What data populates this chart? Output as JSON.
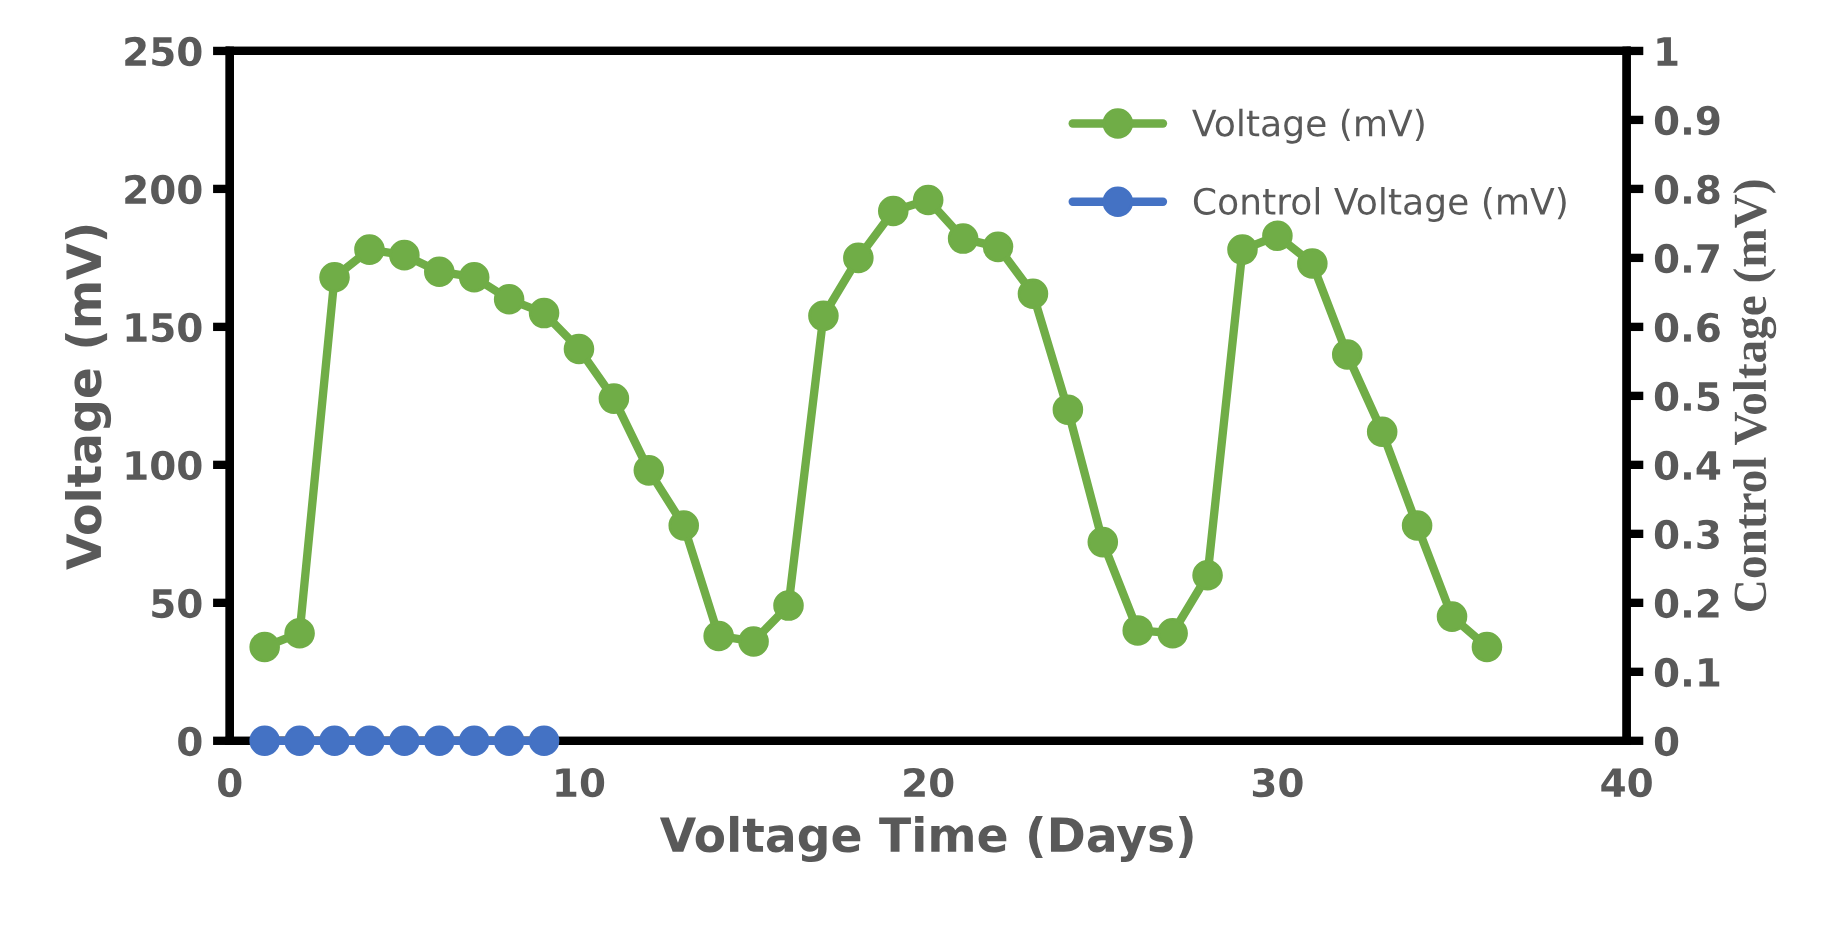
{
  "chart_data": {
    "type": "line",
    "xlabel": "Voltage Time (Days)",
    "ylabel": "Voltage (mV)",
    "y2label": "Control Voltage (mV)",
    "xlim": [
      0,
      40
    ],
    "xticks": [
      0,
      10,
      20,
      30,
      40
    ],
    "ylim": [
      0,
      250
    ],
    "yticks": [
      0,
      50,
      100,
      150,
      200,
      250
    ],
    "y2lim": [
      0,
      1
    ],
    "y2ticks": [
      0,
      0.1,
      0.2,
      0.3,
      0.4,
      0.5,
      0.6,
      0.7,
      0.8,
      0.9,
      1
    ],
    "grid": false,
    "legend": "top right",
    "marker": "circle",
    "line_style": "solid",
    "series": [
      {
        "name": "Voltage (mV)",
        "color": "#70ad47",
        "x": [
          1,
          2,
          3,
          4,
          5,
          6,
          7,
          8,
          9,
          10,
          11,
          12,
          13,
          14,
          15,
          16,
          17,
          18,
          19,
          20,
          21,
          22,
          23,
          24,
          25,
          26,
          27,
          28,
          29,
          30,
          31,
          32,
          33,
          34,
          35,
          36
        ],
        "values": [
          34,
          39,
          168,
          178,
          176,
          170,
          168,
          160,
          155,
          142,
          124,
          98,
          78,
          38,
          36,
          49,
          154,
          175,
          192,
          196,
          182,
          179,
          162,
          120,
          72,
          40,
          39,
          60,
          178,
          183,
          173,
          140,
          112,
          78,
          45,
          34
        ]
      },
      {
        "name": "Control Voltage (mV)",
        "color": "#4472c4",
        "axis": "y2",
        "x": [
          1,
          2,
          3,
          4,
          5,
          6,
          7,
          8,
          9
        ],
        "values": [
          0,
          0,
          0,
          0,
          0,
          0,
          0,
          0,
          0
        ]
      }
    ]
  }
}
